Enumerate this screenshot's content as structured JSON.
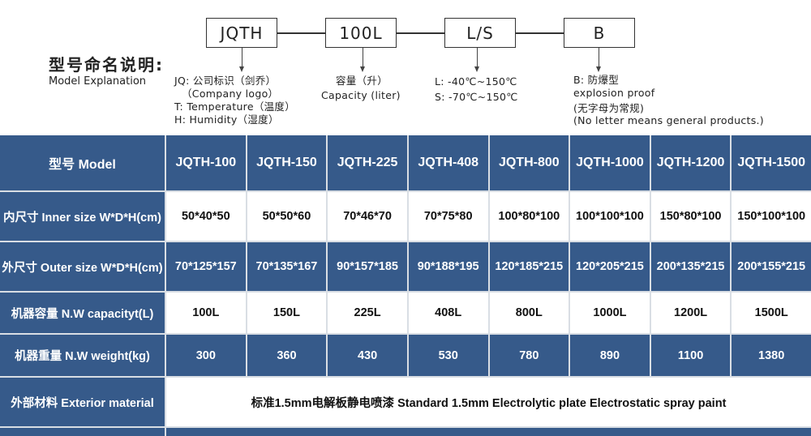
{
  "diagram": {
    "boxes": [
      "JQTH",
      "100L",
      "L/S",
      "B"
    ],
    "title_cn": "型号命名说明:",
    "title_en": "Model Explanation",
    "notes": {
      "jqth": [
        "JQ: 公司标识（剑乔）",
        "（Company logo）",
        "T: Temperature（温度）",
        "H: Humidity（湿度）"
      ],
      "capacity": [
        "容量（升）",
        "Capacity (liter)"
      ],
      "temp": [
        "L: -40℃~150℃",
        "S: -70℃~150℃"
      ],
      "b": [
        "B: 防爆型",
        "explosion proof",
        "(无字母为常规)",
        "(No letter means general products.)"
      ]
    }
  },
  "colors": {
    "header_blue": "#365a8a",
    "grid_line": "#d9dee4"
  },
  "table": {
    "header_label": "型号 Model",
    "models": [
      "JQTH-100",
      "JQTH-150",
      "JQTH-225",
      "JQTH-408",
      "JQTH-800",
      "JQTH-1000",
      "JQTH-1200",
      "JQTH-1500"
    ],
    "rows": [
      {
        "label": "内尺寸 Inner size W*D*H(cm)",
        "style": "white",
        "values": [
          "50*40*50",
          "50*50*60",
          "70*46*70",
          "70*75*80",
          "100*80*100",
          "100*100*100",
          "150*80*100",
          "150*100*100"
        ]
      },
      {
        "label": "外尺寸 Outer size W*D*H(cm)",
        "style": "blue",
        "values": [
          "70*125*157",
          "70*135*167",
          "90*157*185",
          "90*188*195",
          "120*185*215",
          "120*205*215",
          "200*135*215",
          "200*155*215"
        ]
      },
      {
        "label": "机器容量 N.W capacityt(L)",
        "style": "white",
        "values": [
          "100L",
          "150L",
          "225L",
          "408L",
          "800L",
          "1000L",
          "1200L",
          "1500L"
        ]
      },
      {
        "label": "机器重量 N.W weight(kg)",
        "style": "blue",
        "values": [
          "300",
          "360",
          "430",
          "530",
          "780",
          "890",
          "1100",
          "1380"
        ]
      }
    ],
    "exterior": {
      "label": "外部材料 Exterior material",
      "value": "标准1.5mm电解板静电喷漆  Standard 1.5mm Electrolytic plate Electrostatic spray paint"
    }
  }
}
